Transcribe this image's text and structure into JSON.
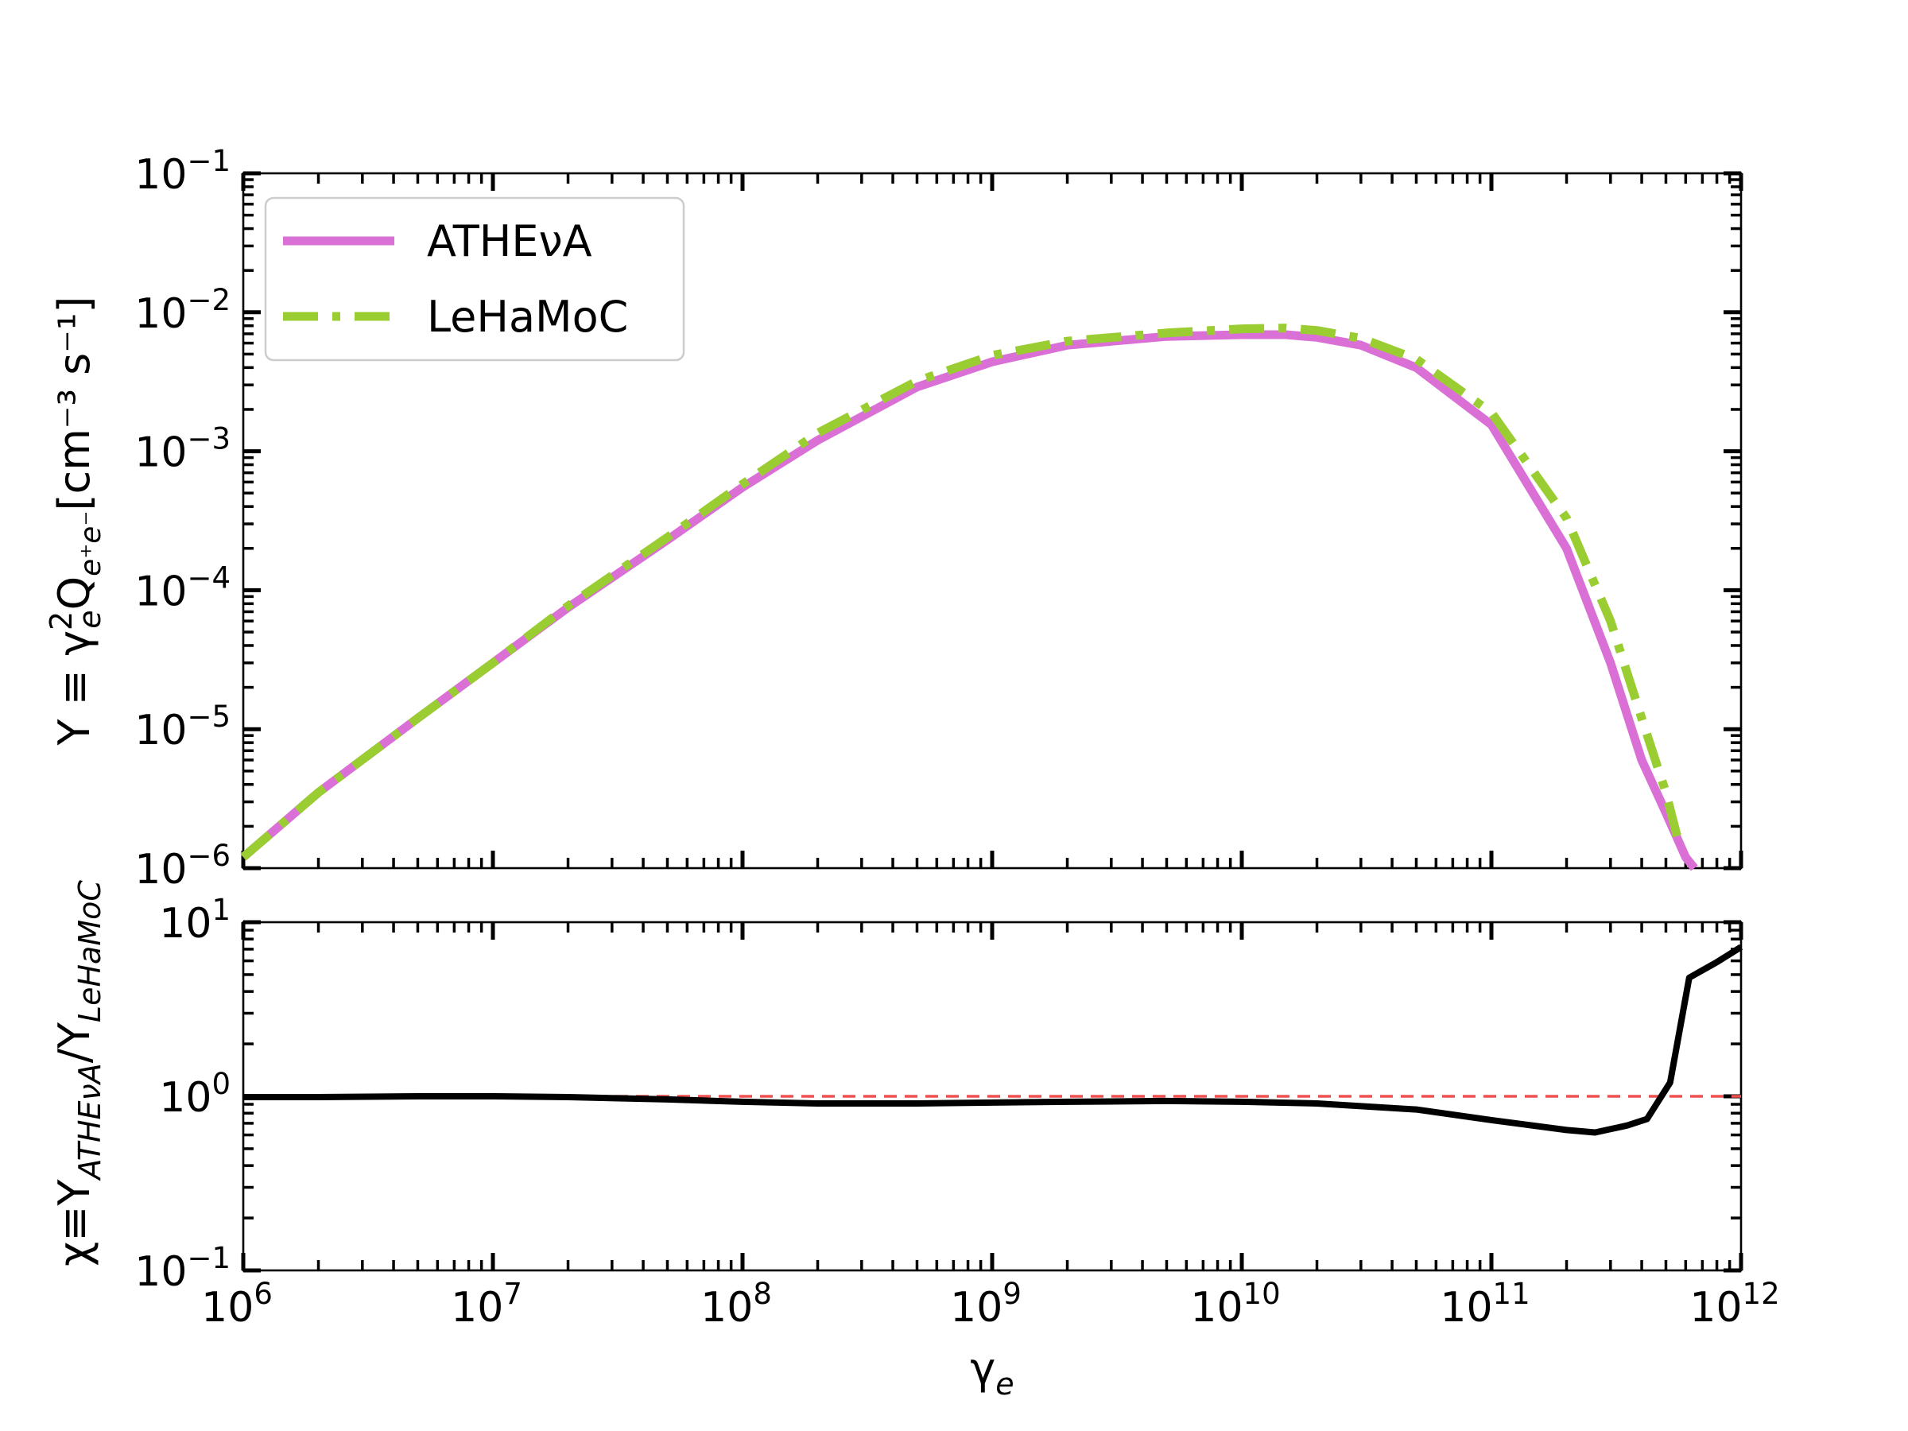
{
  "chart_data": [
    {
      "type": "line",
      "panel": "top",
      "ylabel_parts": {
        "main": "Y ≡ γ",
        "sup": "2",
        "sub1": "e",
        "mid": "Q",
        "sub2": "e⁺e⁻",
        "unit": "[cm⁻³ s⁻¹]"
      },
      "xscale": "log",
      "yscale": "log",
      "xlim": [
        1000000.0,
        1000000000000.0
      ],
      "ylim": [
        1e-06,
        0.1
      ],
      "ytick_exponents": [
        "−6",
        "−5",
        "−4",
        "−3",
        "−2",
        "−1"
      ],
      "legend_position": "upper-left",
      "series": [
        {
          "name": "ATHEνA",
          "color": "#da70d6",
          "style": "solid",
          "x": [
            1000000.0,
            2000000.0,
            5000000.0,
            10000000.0,
            20000000.0,
            50000000.0,
            100000000.0,
            200000000.0,
            500000000.0,
            1000000000.0,
            2000000000.0,
            5000000000.0,
            10000000000.0,
            15000000000.0,
            20000000000.0,
            30000000000.0,
            50000000000.0,
            100000000000.0,
            200000000000.0,
            300000000000.0,
            400000000000.0,
            500000000000.0,
            600000000000.0,
            650000000000.0
          ],
          "y": [
            1.2e-06,
            3.5e-06,
            1.2e-05,
            3e-05,
            7.5e-05,
            0.00023,
            0.00055,
            0.0012,
            0.0029,
            0.0044,
            0.0058,
            0.0067,
            0.0069,
            0.0069,
            0.0066,
            0.0058,
            0.004,
            0.00155,
            0.0002,
            3e-05,
            6e-06,
            2.5e-06,
            1.2e-06,
            1e-06
          ]
        },
        {
          "name": "LeHaMoC",
          "color": "#9acd32",
          "style": "dashdot",
          "x": [
            1000000.0,
            2000000.0,
            5000000.0,
            10000000.0,
            20000000.0,
            50000000.0,
            100000000.0,
            200000000.0,
            500000000.0,
            1000000000.0,
            2000000000.0,
            5000000000.0,
            10000000000.0,
            15000000000.0,
            20000000000.0,
            30000000000.0,
            50000000000.0,
            100000000000.0,
            200000000000.0,
            300000000000.0,
            400000000000.0,
            500000000000.0,
            570000000000.0
          ],
          "y": [
            1.2e-06,
            3.5e-06,
            1.2e-05,
            3e-05,
            7.7e-05,
            0.00024,
            0.00058,
            0.00135,
            0.0032,
            0.0049,
            0.0062,
            0.0071,
            0.0076,
            0.0077,
            0.0074,
            0.0065,
            0.0046,
            0.0019,
            0.00033,
            6e-05,
            1.2e-05,
            3.5e-06,
            1.4e-06
          ]
        }
      ]
    },
    {
      "type": "line",
      "panel": "bottom",
      "ylabel_parts": {
        "main": "χ≡Y",
        "sub1": "ATHEνA",
        "mid": "/Y",
        "sub2": "LeHaMoC"
      },
      "xlabel_parts": {
        "main": "γ",
        "sub": "e"
      },
      "xscale": "log",
      "yscale": "log",
      "xlim": [
        1000000.0,
        1000000000000.0
      ],
      "ylim": [
        0.1,
        10
      ],
      "ytick_exponents": [
        "−1",
        "0",
        "1"
      ],
      "xtick_exponents": [
        "6",
        "7",
        "8",
        "9",
        "10",
        "11",
        "12"
      ],
      "reference_line": {
        "y": 1,
        "color": "#f05050",
        "style": "dashed"
      },
      "series": [
        {
          "color": "#000000",
          "style": "solid",
          "x": [
            1000000.0,
            2000000.0,
            5000000.0,
            10000000.0,
            20000000.0,
            50000000.0,
            100000000.0,
            200000000.0,
            500000000.0,
            1000000000.0,
            2000000000.0,
            5000000000.0,
            10000000000.0,
            20000000000.0,
            50000000000.0,
            100000000000.0,
            200000000000.0,
            260000000000.0,
            350000000000.0,
            420000000000.0,
            520000000000.0,
            620000000000.0,
            800000000000.0,
            1000000000000.0
          ],
          "y": [
            0.99,
            0.99,
            1.0,
            1.0,
            0.99,
            0.96,
            0.93,
            0.91,
            0.91,
            0.92,
            0.93,
            0.94,
            0.93,
            0.91,
            0.84,
            0.73,
            0.64,
            0.62,
            0.68,
            0.74,
            1.2,
            4.8,
            5.9,
            7.2
          ]
        }
      ]
    }
  ]
}
